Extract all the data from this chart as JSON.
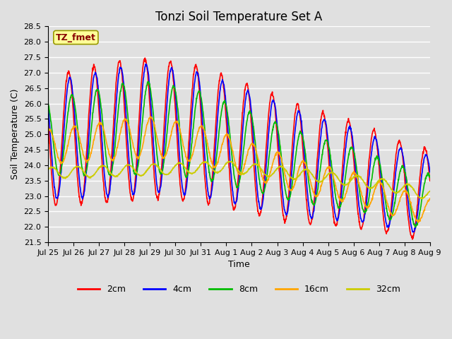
{
  "title": "Tonzi Soil Temperature Set A",
  "xlabel": "Time",
  "ylabel": "Soil Temperature (C)",
  "annotation": "TZ_fmet",
  "ylim": [
    21.5,
    28.5
  ],
  "yticks": [
    21.5,
    22.0,
    22.5,
    23.0,
    23.5,
    24.0,
    24.5,
    25.0,
    25.5,
    26.0,
    26.5,
    27.0,
    27.5,
    28.0,
    28.5
  ],
  "xtick_labels": [
    "Jul 25",
    "Jul 26",
    "Jul 27",
    "Jul 28",
    "Jul 29",
    "Jul 30",
    "Jul 31",
    "Aug 1",
    "Aug 2",
    "Aug 3",
    "Aug 4",
    "Aug 5",
    "Aug 6",
    "Aug 7",
    "Aug 8",
    "Aug 9"
  ],
  "series_colors": {
    "2cm": "#FF0000",
    "4cm": "#0000FF",
    "8cm": "#00BB00",
    "16cm": "#FFA500",
    "32cm": "#CCCC00"
  },
  "linewidth": 1.2,
  "plot_bg_color": "#E0E0E0",
  "annotation_box_color": "#FFFF99",
  "annotation_text_color": "#880000",
  "title_fontsize": 12,
  "axis_label_fontsize": 9,
  "tick_fontsize": 8,
  "legend_fontsize": 9
}
